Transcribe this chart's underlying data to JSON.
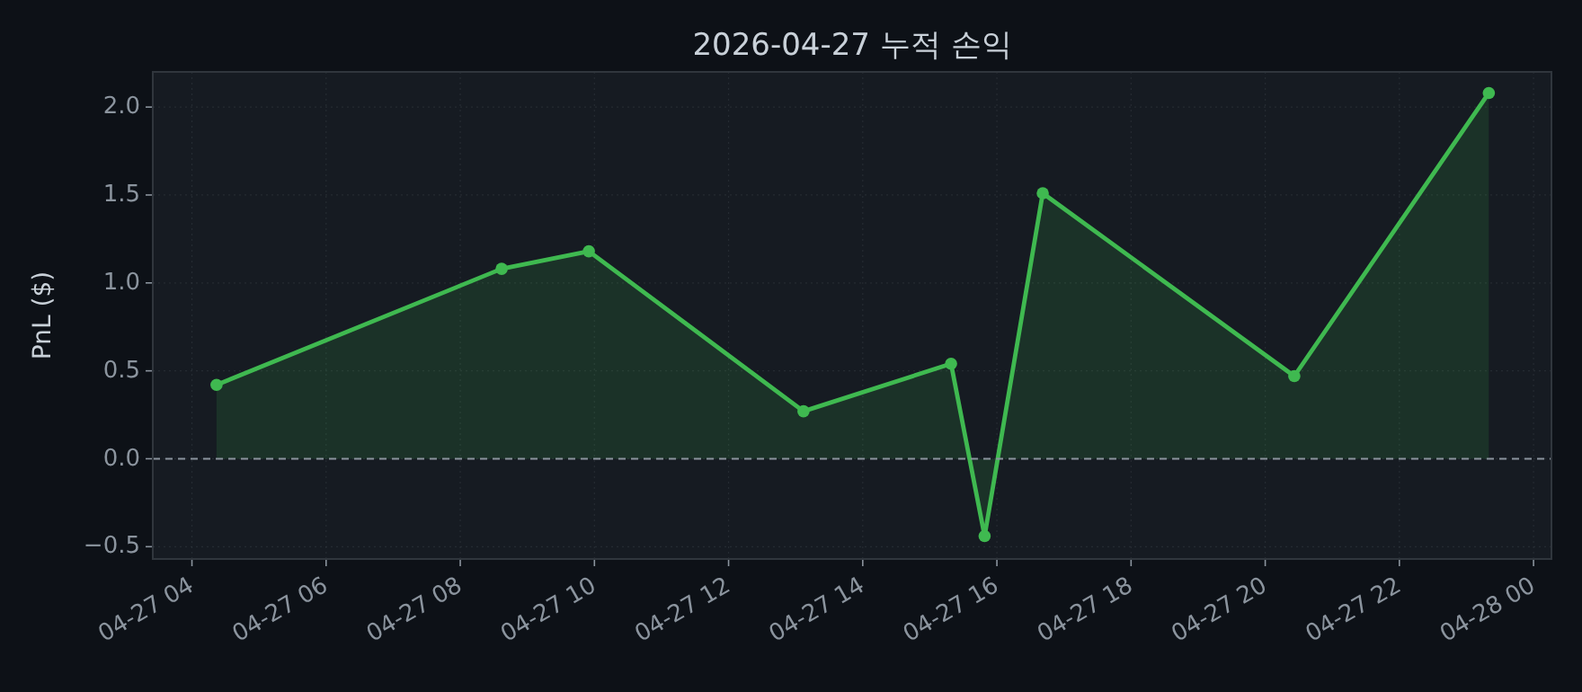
{
  "chart_data": {
    "type": "area",
    "title": "2026-04-27 누적 손익",
    "ylabel": "PnL ($)",
    "x": [
      "2026-04-27T04:22",
      "2026-04-27T08:37",
      "2026-04-27T09:55",
      "2026-04-27T13:07",
      "2026-04-27T15:19",
      "2026-04-27T15:49",
      "2026-04-27T16:41",
      "2026-04-27T20:26",
      "2026-04-27T23:20"
    ],
    "series": [
      {
        "color": "#3fb950",
        "values": [
          0.42,
          1.08,
          1.18,
          0.27,
          0.54,
          -0.44,
          1.51,
          0.47,
          2.08
        ]
      }
    ],
    "xlim": [
      "2026-04-27T03:25",
      "2026-04-28T00:16"
    ],
    "xticks": [
      {
        "value": "2026-04-27T04:00",
        "label": "04-27 04"
      },
      {
        "value": "2026-04-27T06:00",
        "label": "04-27 06"
      },
      {
        "value": "2026-04-27T08:00",
        "label": "04-27 08"
      },
      {
        "value": "2026-04-27T10:00",
        "label": "04-27 10"
      },
      {
        "value": "2026-04-27T12:00",
        "label": "04-27 12"
      },
      {
        "value": "2026-04-27T14:00",
        "label": "04-27 14"
      },
      {
        "value": "2026-04-27T16:00",
        "label": "04-27 16"
      },
      {
        "value": "2026-04-27T18:00",
        "label": "04-27 18"
      },
      {
        "value": "2026-04-27T20:00",
        "label": "04-27 20"
      },
      {
        "value": "2026-04-27T22:00",
        "label": "04-27 22"
      },
      {
        "value": "2026-04-28T00:00",
        "label": "04-28 00"
      }
    ],
    "ylim": [
      -0.57,
      2.2
    ],
    "yticks": [
      {
        "value": -0.5,
        "label": "−0.5"
      },
      {
        "value": 0,
        "label": "0.0"
      },
      0.5,
      {
        "value": 1,
        "label": "1.0"
      },
      1.5,
      {
        "value": 2,
        "label": "2.0"
      }
    ],
    "ref_lines": [
      {
        "axis": "y",
        "value": 0,
        "color": "#8b949e",
        "line_style": "dashed"
      }
    ],
    "grid": true,
    "marker": "circle",
    "line_style": "solid"
  }
}
